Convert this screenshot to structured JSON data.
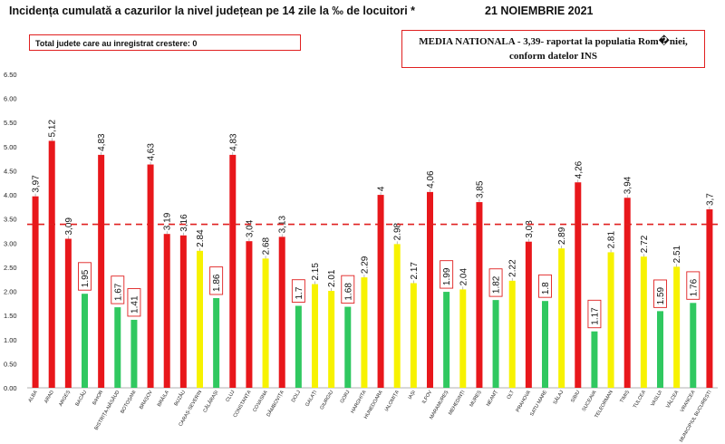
{
  "header": {
    "title": "Incidența cumulată a cazurilor la nivel județean pe 14 zile la ‰ de locuitori *",
    "date": "21 NOIEMBRIE 2021"
  },
  "note_box": {
    "text": "Total judete care au inregistrat crestere: 0"
  },
  "national_box": {
    "line1": "MEDIA NATIONALA - 3,39-  raportat la populatia Rom�niei,",
    "line2": "conform datelor INS"
  },
  "colors": {
    "red": "#e8171b",
    "yellow": "#f7f200",
    "green": "#30c860",
    "reference_line": "#e02020",
    "label_box": "#e02020"
  },
  "chart_data": {
    "type": "bar",
    "ylim": [
      0,
      6.5
    ],
    "yticks": [
      "0.00",
      "0.50",
      "1.00",
      "1.50",
      "2.00",
      "2.50",
      "3.00",
      "3.50",
      "4.00",
      "4.50",
      "5.00",
      "5.50",
      "6.00",
      "6.50"
    ],
    "reference_line": 3.39,
    "grid": false,
    "legend": "none",
    "categories": [
      "ALBA",
      "ARAD",
      "ARGEȘ",
      "BACĂU",
      "BIHOR",
      "BISTRIȚA-NĂSĂUD",
      "BOTOȘANI",
      "BRAȘOV",
      "BRĂILA",
      "BUZĂU",
      "CARAȘ-SEVERIN",
      "CĂLĂRAȘI",
      "CLUJ",
      "CONSTANȚA",
      "COVASNA",
      "DÂMBOVIȚA",
      "DOLJ",
      "GALAȚI",
      "GIURGIU",
      "GORJ",
      "HARGHITA",
      "HUNEDOARA",
      "IALOMIȚA",
      "IAȘI",
      "ILFOV",
      "MARAMUREȘ",
      "MEHEDINȚI",
      "MUREȘ",
      "NEAMȚ",
      "OLT",
      "PRAHOVA",
      "SATU MARE",
      "SĂLAJ",
      "SIBIU",
      "SUCEAVA",
      "TELEORMAN",
      "TIMIȘ",
      "TULCEA",
      "VASLUI",
      "VÂLCEA",
      "VRANCEA",
      "MUNICIPIUL BUCUREȘTI"
    ],
    "values": [
      3.97,
      5.12,
      3.09,
      1.95,
      4.83,
      1.67,
      1.41,
      4.63,
      3.19,
      3.16,
      2.84,
      1.86,
      4.83,
      3.04,
      2.68,
      3.13,
      1.7,
      2.15,
      2.01,
      1.68,
      2.29,
      4,
      2.98,
      2.17,
      4.06,
      1.99,
      2.04,
      3.85,
      1.82,
      2.22,
      3.03,
      1.8,
      2.89,
      4.26,
      1.17,
      2.81,
      3.94,
      2.72,
      1.59,
      2.51,
      1.76,
      3.7
    ],
    "labels": [
      "3,97",
      "5,12",
      "3,09",
      "1.95",
      "4,83",
      "1.67",
      "1.41",
      "4,63",
      "3,19",
      "3,16",
      "2.84",
      "1.86",
      "4,83",
      "3,04",
      "2.68",
      "3,13",
      "1.7",
      "2.15",
      "2.01",
      "1.68",
      "2.29",
      "4",
      "2.98",
      "2.17",
      "4,06",
      "1.99",
      "2.04",
      "3,85",
      "1.82",
      "2.22",
      "3,03",
      "1.8",
      "2.89",
      "4,26",
      "1.17",
      "2.81",
      "3,94",
      "2.72",
      "1.59",
      "2.51",
      "1.76",
      "3,7"
    ],
    "bar_colors": [
      "red",
      "red",
      "red",
      "green",
      "red",
      "green",
      "green",
      "red",
      "red",
      "red",
      "yellow",
      "green",
      "red",
      "red",
      "yellow",
      "red",
      "green",
      "yellow",
      "yellow",
      "green",
      "yellow",
      "red",
      "yellow",
      "yellow",
      "red",
      "green",
      "yellow",
      "red",
      "green",
      "yellow",
      "red",
      "green",
      "yellow",
      "red",
      "green",
      "yellow",
      "red",
      "yellow",
      "green",
      "yellow",
      "green",
      "red"
    ],
    "boxed_labels": [
      false,
      false,
      false,
      true,
      false,
      true,
      true,
      false,
      false,
      false,
      false,
      true,
      false,
      false,
      false,
      false,
      true,
      false,
      false,
      true,
      false,
      false,
      false,
      false,
      false,
      true,
      false,
      false,
      true,
      false,
      false,
      true,
      false,
      false,
      true,
      false,
      false,
      false,
      true,
      false,
      true,
      false
    ]
  }
}
